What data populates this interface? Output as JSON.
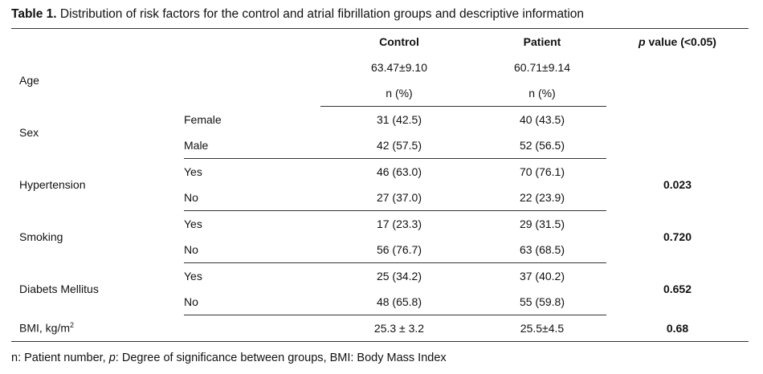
{
  "caption": {
    "label": "Table 1.",
    "text": " Distribution of risk factors for the control and atrial fibrillation groups and descriptive information"
  },
  "header": {
    "control": "Control",
    "patient": "Patient",
    "pvalue_italic": "p",
    "pvalue_rest": " value (<0.05)"
  },
  "age": {
    "label": "Age",
    "control": "63.47±9.10",
    "patient": "60.71±9.14",
    "unit_control": "n (%)",
    "unit_patient": "n (%)"
  },
  "sex": {
    "label": "Sex",
    "female_label": "Female",
    "female_control": "31 (42.5)",
    "female_patient": "40 (43.5)",
    "male_label": "Male",
    "male_control": "42 (57.5)",
    "male_patient": "52 (56.5)"
  },
  "hypertension": {
    "label": "Hypertension",
    "yes_label": "Yes",
    "yes_control": "46 (63.0)",
    "yes_patient": "70 (76.1)",
    "no_label": "No",
    "no_control": "27 (37.0)",
    "no_patient": "22 (23.9)",
    "pvalue": "0.023"
  },
  "smoking": {
    "label": "Smoking",
    "yes_label": "Yes",
    "yes_control": "17 (23.3)",
    "yes_patient": "29 (31.5)",
    "no_label": "No",
    "no_control": "56 (76.7)",
    "no_patient": "63 (68.5)",
    "pvalue": "0.720"
  },
  "diabetes": {
    "label": "Diabets Mellitus",
    "yes_label": "Yes",
    "yes_control": "25 (34.2)",
    "yes_patient": "37 (40.2)",
    "no_label": "No",
    "no_control": "48 (65.8)",
    "no_patient": "55 (59.8)",
    "pvalue": "0.652"
  },
  "bmi": {
    "label": "BMI, kg/m",
    "label_sup": "2",
    "control": "25.3 ± 3.2",
    "patient": "25.5±4.5",
    "pvalue": "0.68"
  },
  "footnote": {
    "part1": "n: Patient number, ",
    "p_italic": "p",
    "part2": ": Degree of significance between groups, BMI: Body Mass Index"
  }
}
